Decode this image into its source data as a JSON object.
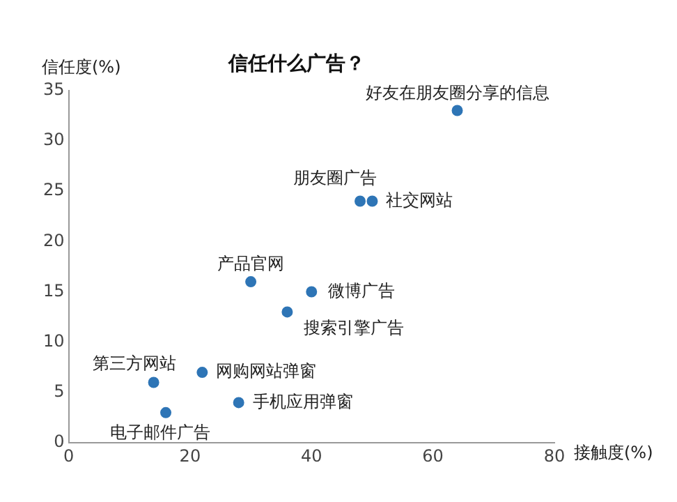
{
  "chart_data": {
    "type": "scatter",
    "title": "信任什么广告？",
    "xlabel": "接触度(%)",
    "ylabel": "信任度(%)",
    "x": [
      64,
      48,
      50,
      30,
      40,
      36,
      22,
      14,
      28,
      16
    ],
    "values": [
      33,
      24,
      24,
      16,
      15,
      13,
      7,
      6,
      4,
      3
    ],
    "color": "#2e75b6",
    "marker": "circle",
    "grid": false,
    "xlim": [
      0,
      80
    ],
    "xticks": [
      0,
      20,
      40,
      60,
      80
    ],
    "ylim": [
      0,
      35
    ],
    "yticks": [
      0,
      5,
      10,
      15,
      20,
      25,
      30,
      35
    ],
    "annotations": [
      {
        "text": "好友在朋友圈分享的信息",
        "x": 64,
        "y": 33
      },
      {
        "text": "朋友圈广告",
        "x": 48,
        "y": 24
      },
      {
        "text": "社交网站",
        "x": 50,
        "y": 24
      },
      {
        "text": "产品官网",
        "x": 30,
        "y": 16
      },
      {
        "text": "微博广告",
        "x": 40,
        "y": 15
      },
      {
        "text": "搜索引擎广告",
        "x": 36,
        "y": 13
      },
      {
        "text": "网购网站弹窗",
        "x": 22,
        "y": 7
      },
      {
        "text": "第三方网站",
        "x": 14,
        "y": 6
      },
      {
        "text": "手机应用弹窗",
        "x": 28,
        "y": 4
      },
      {
        "text": "电子邮件广告",
        "x": 16,
        "y": 3
      }
    ]
  }
}
